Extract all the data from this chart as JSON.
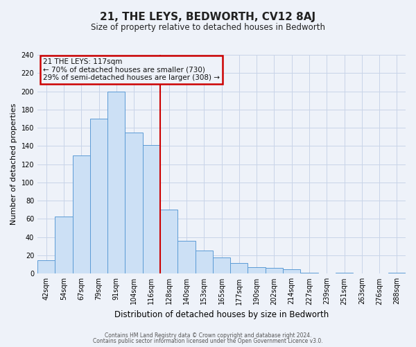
{
  "title": "21, THE LEYS, BEDWORTH, CV12 8AJ",
  "subtitle": "Size of property relative to detached houses in Bedworth",
  "xlabel": "Distribution of detached houses by size in Bedworth",
  "ylabel": "Number of detached properties",
  "bar_labels": [
    "42sqm",
    "54sqm",
    "67sqm",
    "79sqm",
    "91sqm",
    "104sqm",
    "116sqm",
    "128sqm",
    "140sqm",
    "153sqm",
    "165sqm",
    "177sqm",
    "190sqm",
    "202sqm",
    "214sqm",
    "227sqm",
    "239sqm",
    "251sqm",
    "263sqm",
    "276sqm",
    "288sqm"
  ],
  "bar_heights": [
    15,
    63,
    130,
    170,
    200,
    155,
    141,
    70,
    36,
    25,
    18,
    12,
    7,
    6,
    5,
    1,
    0,
    1,
    0,
    0,
    1
  ],
  "bar_color": "#cce0f5",
  "bar_edge_color": "#5b9bd5",
  "grid_color": "#c8d4e8",
  "background_color": "#eef2f9",
  "marker_line_color": "#cc0000",
  "annotation_line1": "21 THE LEYS: 117sqm",
  "annotation_line2": "← 70% of detached houses are smaller (730)",
  "annotation_line3": "29% of semi-detached houses are larger (308) →",
  "annotation_box_edge_color": "#cc0000",
  "annotation_box_bg": "#eef2f9",
  "ylim": [
    0,
    240
  ],
  "yticks": [
    0,
    20,
    40,
    60,
    80,
    100,
    120,
    140,
    160,
    180,
    200,
    220,
    240
  ],
  "footer_line1": "Contains HM Land Registry data © Crown copyright and database right 2024.",
  "footer_line2": "Contains public sector information licensed under the Open Government Licence v3.0.",
  "title_fontsize": 11,
  "subtitle_fontsize": 8.5,
  "ylabel_fontsize": 8,
  "xlabel_fontsize": 8.5,
  "tick_fontsize": 7,
  "annotation_fontsize": 7.5,
  "footer_fontsize": 5.5
}
